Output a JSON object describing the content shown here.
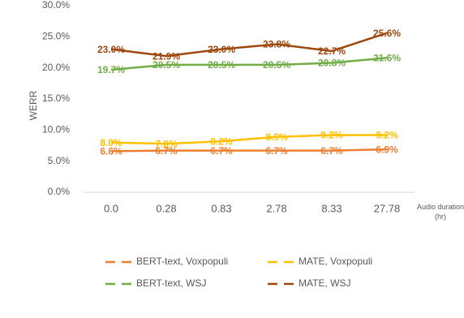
{
  "chart_data": {
    "type": "line",
    "y_label": "WERR",
    "x_label": "Audio duration (hr)",
    "categories": [
      "0.0",
      "0.28",
      "0.83",
      "2.78",
      "8.33",
      "27.78"
    ],
    "series": [
      {
        "name": "BERT-text, Voxpopuli",
        "color": "#ED7D31",
        "values": [
          6.6,
          6.7,
          6.7,
          6.7,
          6.7,
          6.9
        ],
        "value_labels": [
          "6.6%",
          "6.7%",
          "6.7%",
          "6.7%",
          "6.7%",
          "6.9%"
        ]
      },
      {
        "name": "MATE, Voxpopuli",
        "color": "#FFC000",
        "values": [
          8.0,
          7.8,
          8.2,
          8.9,
          9.2,
          9.2
        ],
        "value_labels": [
          "8.0%",
          "7.8%",
          "8.2%",
          "8.9%",
          "9.2%",
          "9.2%"
        ]
      },
      {
        "name": "BERT-text, WSJ",
        "color": "#70AD47",
        "values": [
          19.7,
          20.5,
          20.5,
          20.5,
          20.8,
          21.6
        ],
        "value_labels": [
          "19.7%",
          "20.5%",
          "20.5%",
          "20.5%",
          "20.8%",
          "21.6%"
        ]
      },
      {
        "name": "MATE, WSJ",
        "color": "#9E480E",
        "values": [
          23.0,
          21.9,
          23.0,
          23.8,
          22.7,
          25.6
        ],
        "value_labels": [
          "23.0%",
          "21.9%",
          "23.0%",
          "23.8%",
          "22.7%",
          "25.6%"
        ]
      }
    ],
    "ylim": [
      0,
      30
    ],
    "yticks": [
      {
        "value": 0,
        "label": "0.0%"
      },
      {
        "value": 5,
        "label": "5.0%"
      },
      {
        "value": 10,
        "label": "10.0%"
      },
      {
        "value": 15,
        "label": "15.0%"
      },
      {
        "value": 20,
        "label": "20.0%"
      },
      {
        "value": 25,
        "label": "25.0%"
      },
      {
        "value": 30,
        "label": "30.0%"
      }
    ],
    "grid": false,
    "legend": "bottom"
  }
}
